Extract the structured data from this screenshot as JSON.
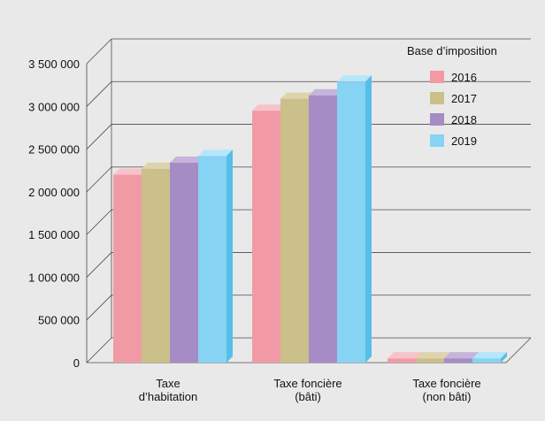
{
  "chart_data": {
    "type": "bar",
    "title": "",
    "xlabel": "",
    "ylabel": "",
    "ylim": [
      0,
      3500000
    ],
    "yticks": [
      0,
      500000,
      1000000,
      1500000,
      2000000,
      2500000,
      3000000,
      3500000
    ],
    "ytick_labels": [
      "0",
      "500 000",
      "1 000 000",
      "1 500 000",
      "2 000 000",
      "2 500 000",
      "3 000 000",
      "3 500 000"
    ],
    "categories": [
      [
        "Taxe",
        "d’habitation"
      ],
      [
        "Taxe foncière",
        "(bâti)"
      ],
      [
        "Taxe foncière",
        "(non bâti)"
      ]
    ],
    "legend_title": "Base d’imposition",
    "legend_position": "top-right",
    "grid": true,
    "series": [
      {
        "name": "2016",
        "color": "#f19aa6",
        "top_color": "#f7c3ca",
        "side_color": "#d97f8c",
        "values": [
          2200000,
          2950000,
          50000
        ]
      },
      {
        "name": "2017",
        "color": "#cbbf8a",
        "top_color": "#ddd4ae",
        "side_color": "#ada173",
        "values": [
          2270000,
          3090000,
          50000
        ]
      },
      {
        "name": "2018",
        "color": "#a58cc4",
        "top_color": "#c5b4dc",
        "side_color": "#8a72aa",
        "values": [
          2340000,
          3130000,
          50000
        ]
      },
      {
        "name": "2019",
        "color": "#86d3f3",
        "top_color": "#b6e6fa",
        "side_color": "#56bfe8",
        "values": [
          2420000,
          3290000,
          50000
        ]
      }
    ]
  }
}
